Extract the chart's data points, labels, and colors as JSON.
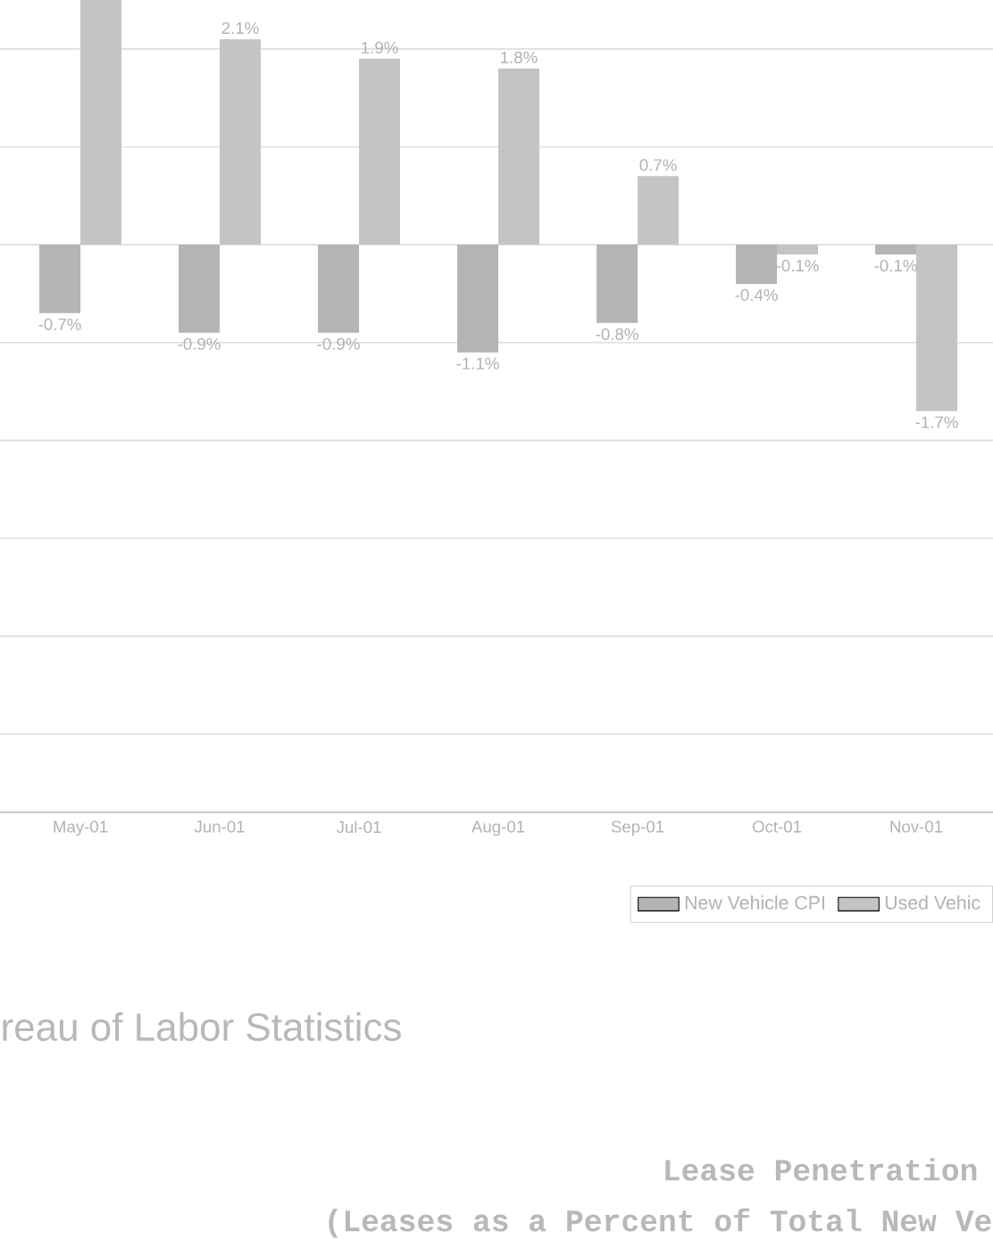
{
  "chart_data": {
    "type": "bar",
    "categories": [
      "May-01",
      "Jun-01",
      "Jul-01",
      "Aug-01",
      "Sep-01",
      "Oct-01",
      "Nov-01"
    ],
    "series": [
      {
        "name": "New Vehicle CPI",
        "color": "#b4b4b4",
        "values": [
          -0.7,
          -0.9,
          -0.9,
          -1.1,
          -0.8,
          -0.4,
          -0.1
        ],
        "value_labels": [
          "-0.7%",
          "-0.9%",
          "-0.9%",
          "-1.1%",
          "-0.8%",
          "-0.4%",
          "-0.1%"
        ]
      },
      {
        "name": "Used Vehic",
        "color": "#c4c4c4",
        "values": [
          2.5,
          2.1,
          1.9,
          1.8,
          0.7,
          -0.1,
          -1.7
        ],
        "value_labels": [
          null,
          "2.1%",
          "1.9%",
          "1.8%",
          "0.7%",
          "-0.1%",
          "-1.7%"
        ]
      }
    ],
    "ylim": [
      -5.8,
      2.5
    ],
    "tick_labels": "x",
    "grid": "y",
    "legend": "bottom right",
    "annotations": [
      "reau of Labor Statistics",
      "Lease Penetration",
      "(Leases as a Percent of Total New Ve"
    ]
  }
}
